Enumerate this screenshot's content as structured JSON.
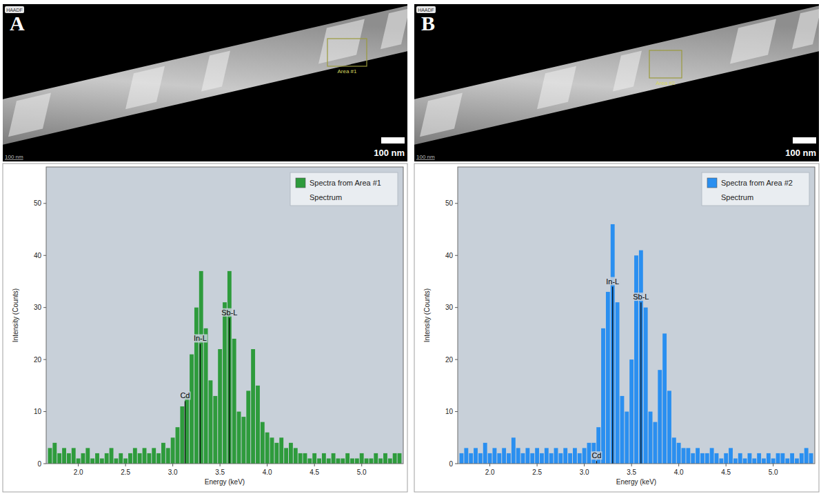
{
  "images": [
    {
      "letter": "A",
      "badge": "HAADF",
      "scale_bar": "100 nm",
      "corner_label": "100 nm",
      "area_label": "Area #1"
    },
    {
      "letter": "B",
      "badge": "HAADF",
      "scale_bar": "100 nm",
      "corner_label": "100 nm",
      "area_label": "Area #2"
    }
  ],
  "chart_data": [
    {
      "type": "bar",
      "subtitle": "Spectrum",
      "x_label": "Energy (keV)",
      "y_label": "Intensity (Counts)",
      "x": [
        1.7,
        1.75,
        1.8,
        1.85,
        1.9,
        1.95,
        2.0,
        2.05,
        2.1,
        2.15,
        2.2,
        2.25,
        2.3,
        2.35,
        2.4,
        2.45,
        2.5,
        2.55,
        2.6,
        2.65,
        2.7,
        2.75,
        2.8,
        2.85,
        2.9,
        2.95,
        3.0,
        3.05,
        3.1,
        3.15,
        3.2,
        3.25,
        3.3,
        3.35,
        3.4,
        3.45,
        3.5,
        3.55,
        3.6,
        3.65,
        3.7,
        3.75,
        3.8,
        3.85,
        3.9,
        3.95,
        4.0,
        4.05,
        4.1,
        4.15,
        4.2,
        4.25,
        4.3,
        4.35,
        4.4,
        4.45,
        4.5,
        4.55,
        4.6,
        4.65,
        4.7,
        4.75,
        4.8,
        4.85,
        4.9,
        4.95,
        5.0,
        5.05,
        5.1,
        5.15,
        5.2,
        5.25,
        5.3,
        5.35,
        5.4
      ],
      "series": [
        {
          "name": "Spectra from Area #1",
          "color": "#2e9b3c",
          "values": [
            3,
            4,
            2,
            3,
            2,
            3,
            1,
            2,
            3,
            1,
            2,
            1,
            2,
            3,
            1,
            2,
            1,
            2,
            3,
            2,
            3,
            2,
            3,
            2,
            4,
            3,
            5,
            7,
            11,
            13,
            21,
            30,
            37,
            26,
            16,
            13,
            22,
            31,
            37,
            24,
            10,
            9,
            14,
            22,
            15,
            8,
            6,
            5,
            4,
            5,
            3,
            4,
            3,
            2,
            2,
            1,
            2,
            1,
            2,
            1,
            2,
            1,
            1,
            2,
            1,
            1,
            2,
            1,
            1,
            2,
            1,
            2,
            1,
            2,
            2
          ]
        }
      ],
      "annotations": [
        {
          "label": "Cd",
          "x": 3.13,
          "y": 12
        },
        {
          "label": "In-L",
          "x": 3.29,
          "y": 23
        },
        {
          "label": "Sb-L",
          "x": 3.6,
          "y": 28
        }
      ],
      "xlim": [
        1.66,
        5.44
      ],
      "xticks": [
        {
          "value": 2,
          "label": "2.0"
        },
        {
          "value": 2.5,
          "label": "2.5"
        },
        {
          "value": 3,
          "label": "3.0"
        },
        {
          "value": 3.5,
          "label": "3.5"
        },
        {
          "value": 4,
          "label": "4.0"
        },
        {
          "value": 4.5,
          "label": "4.5"
        },
        {
          "value": 5,
          "label": "5.0"
        }
      ],
      "ylim": [
        0,
        57
      ],
      "yticks": [
        0,
        10,
        20,
        30,
        40,
        50
      ],
      "grid": false,
      "legend": "top-right"
    },
    {
      "type": "bar",
      "subtitle": "Spectrum",
      "x_label": "Energy (keV)",
      "y_label": "Intensity (Counts)",
      "x": [
        1.7,
        1.75,
        1.8,
        1.85,
        1.9,
        1.95,
        2.0,
        2.05,
        2.1,
        2.15,
        2.2,
        2.25,
        2.3,
        2.35,
        2.4,
        2.45,
        2.5,
        2.55,
        2.6,
        2.65,
        2.7,
        2.75,
        2.8,
        2.85,
        2.9,
        2.95,
        3.0,
        3.05,
        3.1,
        3.15,
        3.2,
        3.25,
        3.3,
        3.35,
        3.4,
        3.45,
        3.5,
        3.55,
        3.6,
        3.65,
        3.7,
        3.75,
        3.8,
        3.85,
        3.9,
        3.95,
        4.0,
        4.05,
        4.1,
        4.15,
        4.2,
        4.25,
        4.3,
        4.35,
        4.4,
        4.45,
        4.5,
        4.55,
        4.6,
        4.65,
        4.7,
        4.75,
        4.8,
        4.85,
        4.9,
        4.95,
        5.0,
        5.05,
        5.1,
        5.15,
        5.2,
        5.25,
        5.3,
        5.35,
        5.4
      ],
      "series": [
        {
          "name": "Spectra from Area #2",
          "color": "#2a8ff0",
          "values": [
            2,
            3,
            2,
            3,
            2,
            4,
            2,
            3,
            2,
            3,
            2,
            5,
            3,
            2,
            3,
            2,
            3,
            2,
            3,
            2,
            3,
            2,
            3,
            2,
            3,
            2,
            3,
            4,
            4,
            7,
            26,
            33,
            46,
            31,
            13,
            10,
            20,
            40,
            41,
            30,
            10,
            8,
            18,
            25,
            14,
            5,
            4,
            3,
            3,
            2,
            3,
            2,
            2,
            3,
            2,
            1,
            2,
            3,
            1,
            2,
            1,
            2,
            1,
            2,
            1,
            2,
            1,
            2,
            2,
            1,
            2,
            1,
            2,
            3,
            2
          ]
        }
      ],
      "annotations": [
        {
          "label": "Cd",
          "x": 3.13,
          "y": 0.5
        },
        {
          "label": "In-L",
          "x": 3.3,
          "y": 34
        },
        {
          "label": "Sb-L",
          "x": 3.6,
          "y": 31
        }
      ],
      "xlim": [
        1.66,
        5.44
      ],
      "xticks": [
        {
          "value": 2,
          "label": "2.0"
        },
        {
          "value": 2.5,
          "label": "2.5"
        },
        {
          "value": 3,
          "label": "3.0"
        },
        {
          "value": 3.5,
          "label": "3.5"
        },
        {
          "value": 4,
          "label": "4.0"
        },
        {
          "value": 4.5,
          "label": "4.5"
        },
        {
          "value": 5,
          "label": "5.0"
        }
      ],
      "ylim": [
        0,
        57
      ],
      "yticks": [
        0,
        10,
        20,
        30,
        40,
        50
      ],
      "grid": false,
      "legend": "top-right"
    }
  ]
}
